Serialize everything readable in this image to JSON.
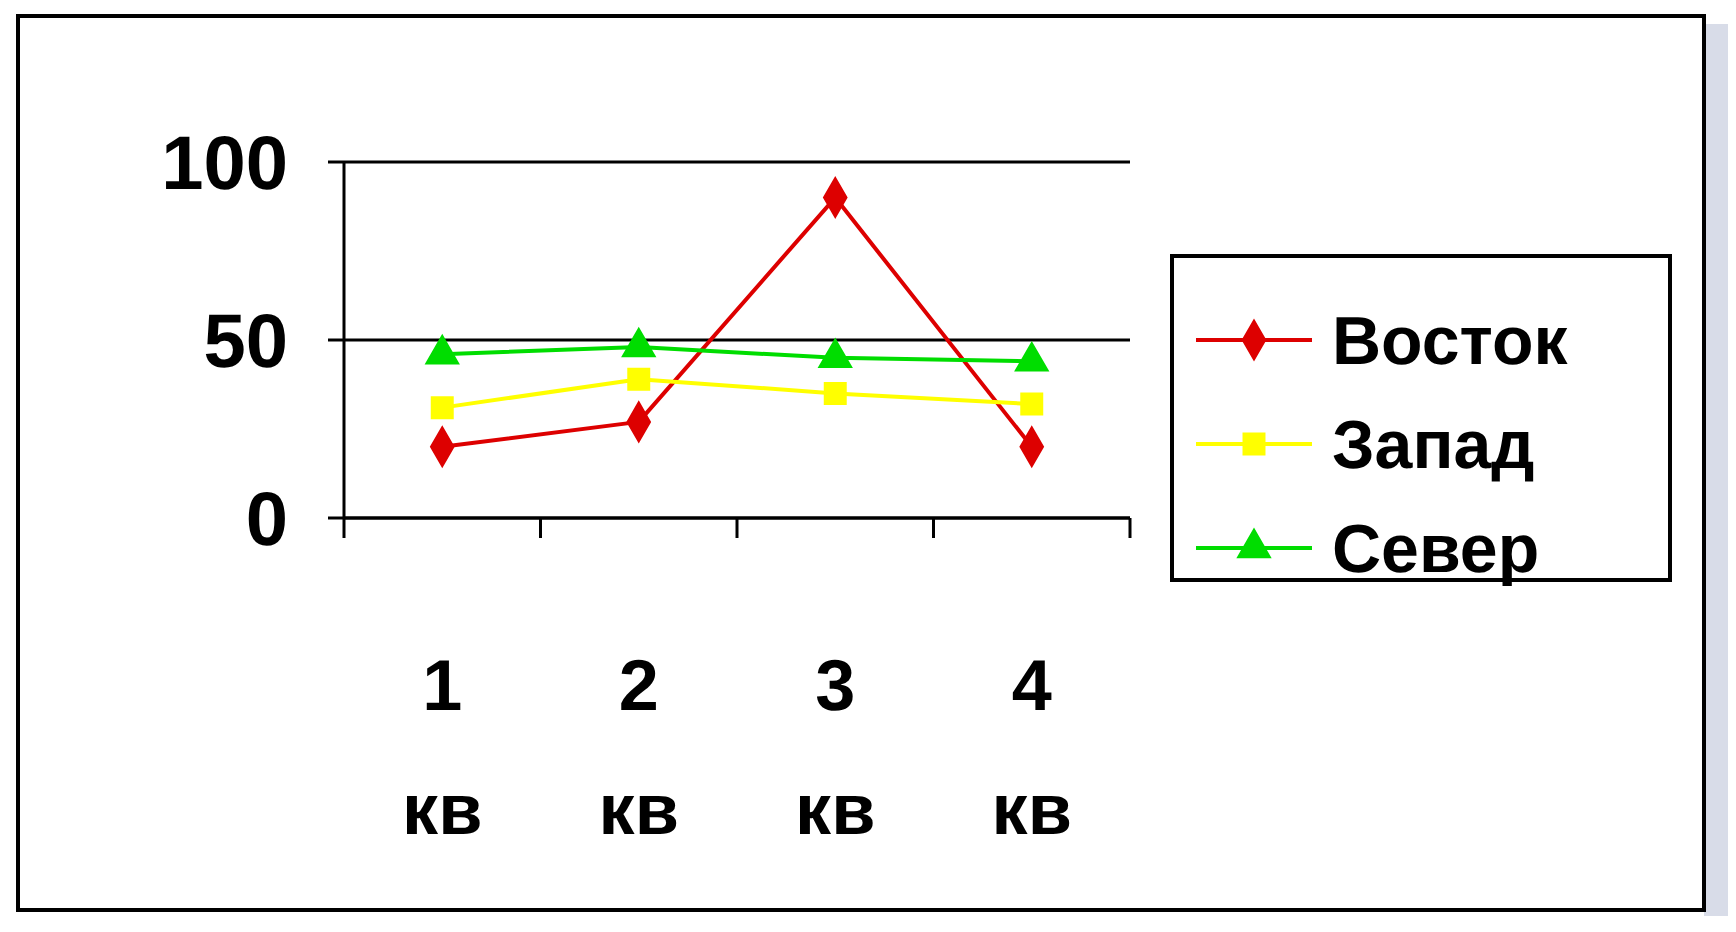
{
  "chart_data": {
    "type": "line",
    "categories": [
      "1\nкв",
      "2\nкв",
      "3\nкв",
      "4\nкв"
    ],
    "series": [
      {
        "name": "Восток",
        "color": "#dd0000",
        "values": [
          20,
          27,
          90,
          20
        ],
        "marker": "diamond"
      },
      {
        "name": "Запад",
        "color": "#ffff00",
        "values": [
          31,
          39,
          35,
          32
        ],
        "marker": "square"
      },
      {
        "name": "Север",
        "color": "#00dd00",
        "values": [
          46,
          48,
          45,
          44
        ],
        "marker": "triangle"
      }
    ],
    "ylim": [
      0,
      100
    ],
    "yticks": [
      0,
      50,
      100
    ],
    "grid": "y",
    "legend": "right"
  }
}
